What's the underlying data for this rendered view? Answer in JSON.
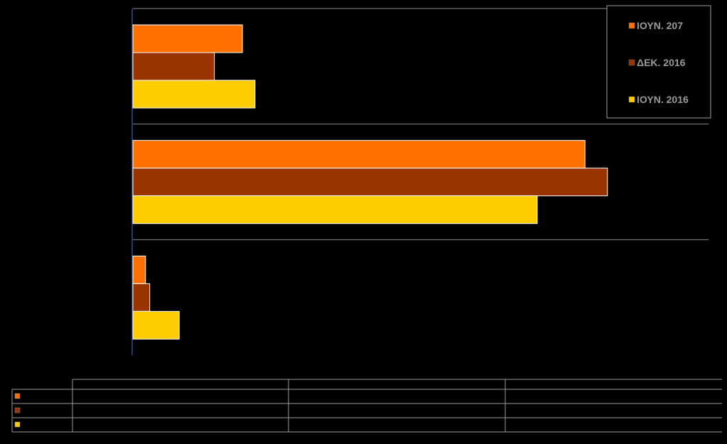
{
  "chart_data": {
    "type": "bar",
    "orientation": "horizontal",
    "categories": [
      "",
      "",
      ""
    ],
    "series": [
      {
        "name": "ΙΟΥΝ. 207",
        "color": "#FF7000",
        "values": [
          39,
          161,
          4.5
        ]
      },
      {
        "name": "ΔΕΚ. 2016",
        "color": "#993300",
        "values": [
          29,
          169,
          6
        ]
      },
      {
        "name": "ΙΟΥΝ. 2016",
        "color": "#FFCC00",
        "values": [
          43.5,
          144,
          16.5
        ]
      }
    ],
    "xlim": [
      0,
      205
    ],
    "grid": true,
    "legend": "top-right",
    "title": "",
    "xlabel": "",
    "ylabel": ""
  }
}
